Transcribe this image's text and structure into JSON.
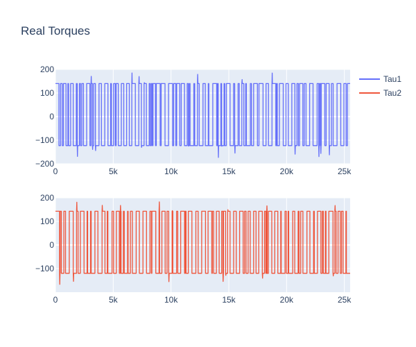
{
  "chart_data": {
    "type": "line",
    "title": "Real Torques",
    "legend_position": "top-right",
    "grid": true,
    "subplots": [
      {
        "series_name": "Tau1",
        "color": "#636efa",
        "xlim": [
          0,
          25500
        ],
        "ylim": [
          -200,
          200
        ],
        "x_ticks": [
          0,
          5000,
          10000,
          15000,
          20000,
          25000
        ],
        "x_tick_labels": [
          "0",
          "5k",
          "10k",
          "15k",
          "20k",
          "25k"
        ],
        "y_ticks": [
          -200,
          -100,
          0,
          100,
          200
        ],
        "y_tick_labels": [
          "−200",
          "−100",
          "0",
          "100",
          "200"
        ],
        "high_level": 140,
        "low_level": -123,
        "peak_max": 185,
        "peak_min": -182
      },
      {
        "series_name": "Tau2",
        "color": "#ef553b",
        "xlim": [
          0,
          25500
        ],
        "ylim": [
          -200,
          200
        ],
        "x_ticks": [
          0,
          5000,
          10000,
          15000,
          20000,
          25000
        ],
        "x_tick_labels": [
          "0",
          "5k",
          "10k",
          "15k",
          "20k",
          "25k"
        ],
        "y_ticks": [
          -100,
          0,
          100,
          200
        ],
        "y_tick_labels": [
          "−100",
          "0",
          "100",
          "200"
        ],
        "high_level": 143,
        "low_level": -120,
        "peak_max": 183,
        "peak_min": -175
      }
    ]
  },
  "legend": {
    "items": [
      {
        "label": "Tau1",
        "color": "#636efa"
      },
      {
        "label": "Tau2",
        "color": "#ef553b"
      }
    ]
  }
}
